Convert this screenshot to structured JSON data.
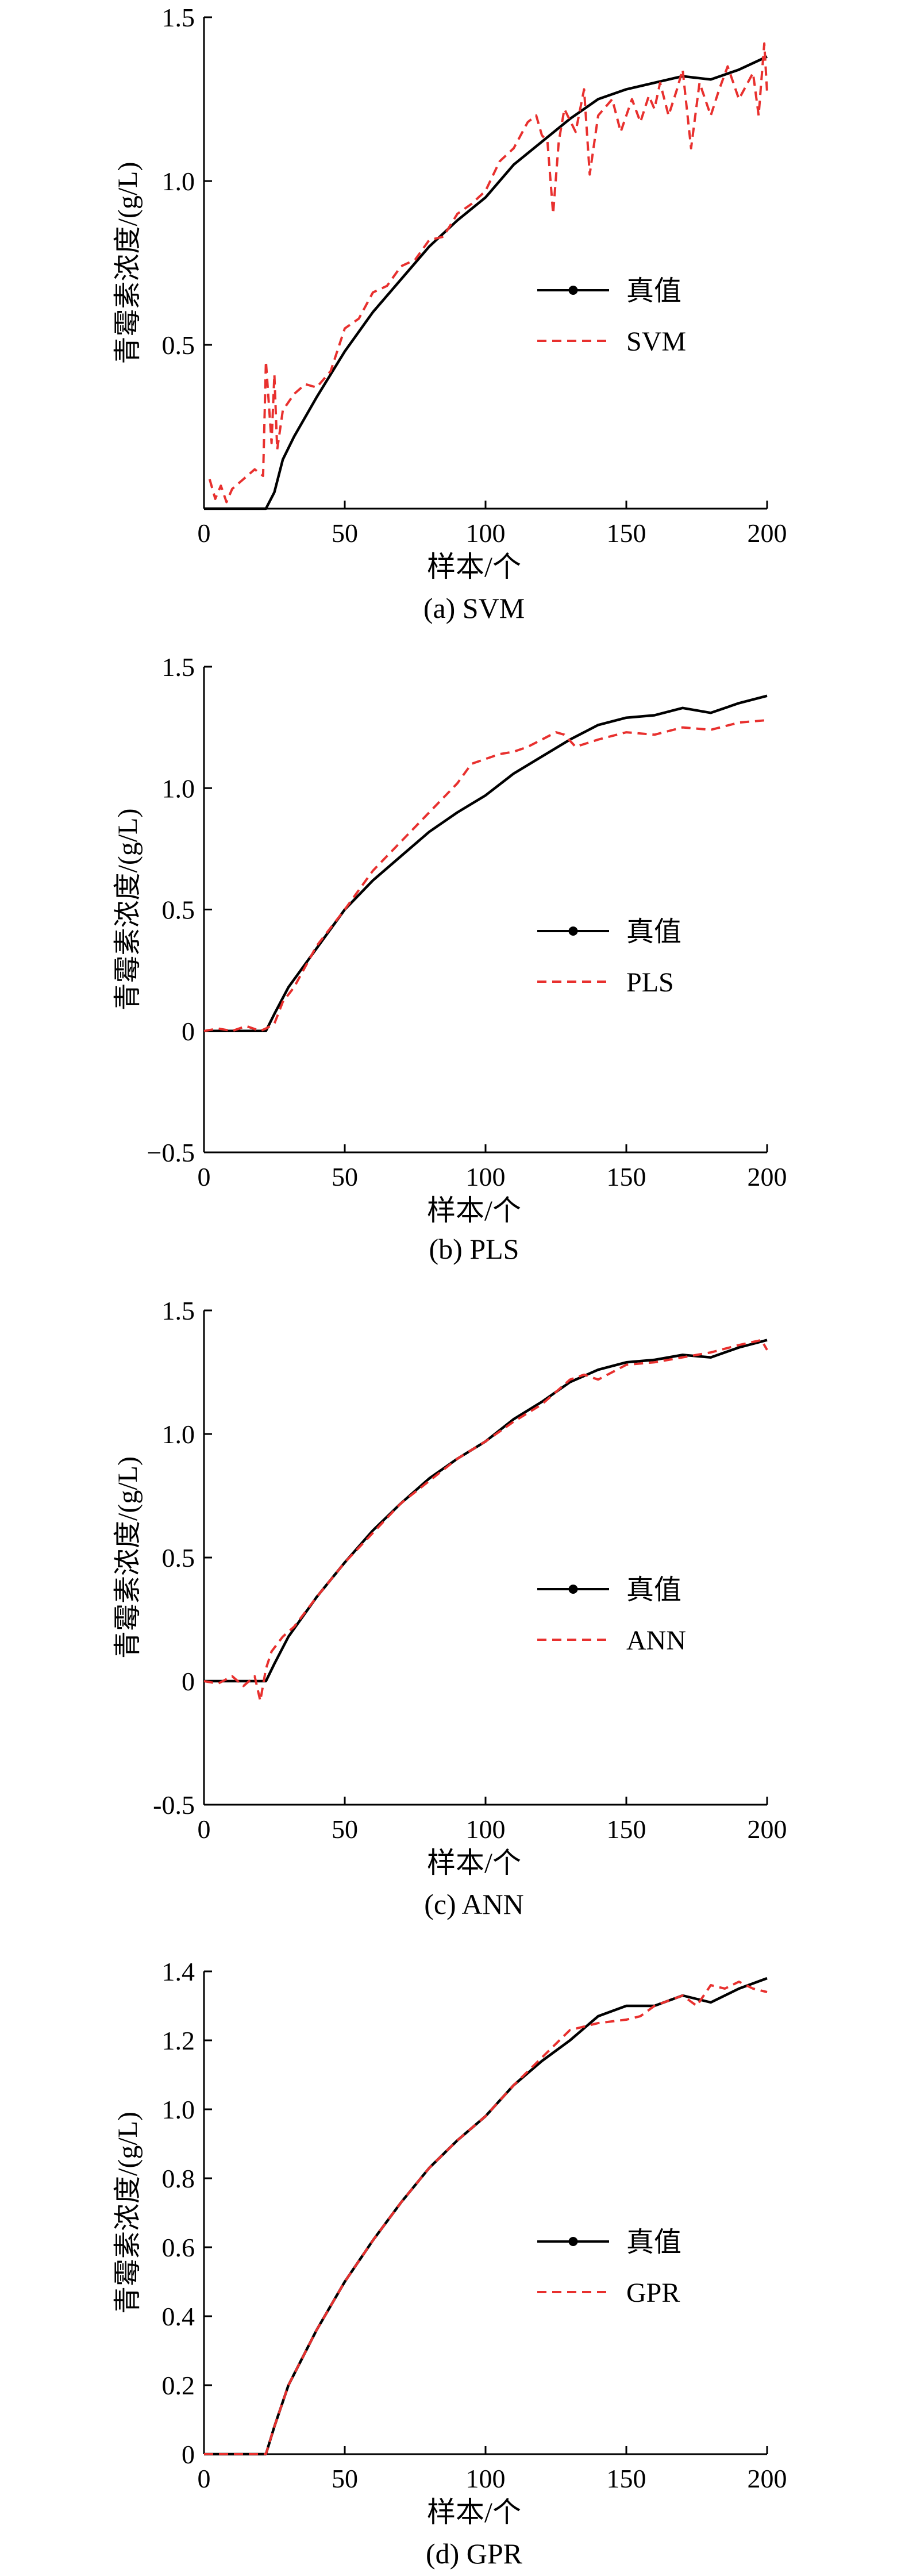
{
  "chart_data": [
    {
      "type": "line",
      "caption": "(a) SVM",
      "xlabel": "样本/个",
      "ylabel": "青霉素浓度/(g/L)",
      "xlim": [
        0,
        200
      ],
      "ylim": [
        0,
        1.5
      ],
      "xticks": [
        "0",
        "50",
        "100",
        "150",
        "200"
      ],
      "yticks": [
        {
          "v": 0.5,
          "t": "0.5"
        },
        {
          "v": 1.0,
          "t": "1.0"
        },
        {
          "v": 1.5,
          "t": "1.5"
        }
      ],
      "grid": false,
      "legend_position": "center-right",
      "series": [
        {
          "name": "真值",
          "color": "#000000",
          "style": "solid",
          "points": [
            [
              0,
              0
            ],
            [
              22,
              0
            ],
            [
              25,
              0.05
            ],
            [
              28,
              0.15
            ],
            [
              32,
              0.22
            ],
            [
              40,
              0.34
            ],
            [
              50,
              0.48
            ],
            [
              60,
              0.6
            ],
            [
              70,
              0.7
            ],
            [
              80,
              0.8
            ],
            [
              90,
              0.88
            ],
            [
              100,
              0.95
            ],
            [
              110,
              1.05
            ],
            [
              120,
              1.12
            ],
            [
              130,
              1.19
            ],
            [
              140,
              1.25
            ],
            [
              150,
              1.28
            ],
            [
              160,
              1.3
            ],
            [
              170,
              1.32
            ],
            [
              180,
              1.31
            ],
            [
              190,
              1.34
            ],
            [
              200,
              1.38
            ]
          ]
        },
        {
          "name": "SVM",
          "color": "#e8302e",
          "style": "dashed",
          "points": [
            [
              2,
              0.09
            ],
            [
              4,
              0.03
            ],
            [
              6,
              0.07
            ],
            [
              8,
              0.02
            ],
            [
              10,
              0.06
            ],
            [
              14,
              0.09
            ],
            [
              18,
              0.12
            ],
            [
              21,
              0.1
            ],
            [
              22,
              0.45
            ],
            [
              24,
              0.2
            ],
            [
              25,
              0.41
            ],
            [
              26,
              0.18
            ],
            [
              28,
              0.3
            ],
            [
              32,
              0.35
            ],
            [
              36,
              0.38
            ],
            [
              40,
              0.37
            ],
            [
              45,
              0.42
            ],
            [
              50,
              0.55
            ],
            [
              55,
              0.58
            ],
            [
              60,
              0.66
            ],
            [
              65,
              0.68
            ],
            [
              70,
              0.74
            ],
            [
              75,
              0.76
            ],
            [
              80,
              0.82
            ],
            [
              85,
              0.83
            ],
            [
              90,
              0.9
            ],
            [
              95,
              0.93
            ],
            [
              100,
              0.97
            ],
            [
              105,
              1.06
            ],
            [
              110,
              1.1
            ],
            [
              115,
              1.18
            ],
            [
              118,
              1.2
            ],
            [
              120,
              1.14
            ],
            [
              122,
              1.12
            ],
            [
              124,
              0.9
            ],
            [
              126,
              1.12
            ],
            [
              128,
              1.22
            ],
            [
              132,
              1.15
            ],
            [
              135,
              1.28
            ],
            [
              137,
              1.02
            ],
            [
              140,
              1.2
            ],
            [
              145,
              1.25
            ],
            [
              148,
              1.15
            ],
            [
              152,
              1.25
            ],
            [
              155,
              1.18
            ],
            [
              158,
              1.26
            ],
            [
              160,
              1.22
            ],
            [
              162,
              1.3
            ],
            [
              165,
              1.2
            ],
            [
              168,
              1.28
            ],
            [
              170,
              1.34
            ],
            [
              173,
              1.1
            ],
            [
              176,
              1.3
            ],
            [
              180,
              1.2
            ],
            [
              183,
              1.28
            ],
            [
              186,
              1.35
            ],
            [
              190,
              1.25
            ],
            [
              195,
              1.33
            ],
            [
              197,
              1.2
            ],
            [
              199,
              1.42
            ],
            [
              200,
              1.27
            ]
          ]
        }
      ]
    },
    {
      "type": "line",
      "caption": "(b) PLS",
      "xlabel": "样本/个",
      "ylabel": "青霉素浓度/(g/L)",
      "xlim": [
        0,
        200
      ],
      "ylim": [
        -0.5,
        1.5
      ],
      "xticks": [
        "0",
        "50",
        "100",
        "150",
        "200"
      ],
      "yticks": [
        {
          "v": -0.5,
          "t": "−0.5"
        },
        {
          "v": 0,
          "t": "0"
        },
        {
          "v": 0.5,
          "t": "0.5"
        },
        {
          "v": 1.0,
          "t": "1.0"
        },
        {
          "v": 1.5,
          "t": "1.5"
        }
      ],
      "grid": false,
      "legend_position": "center-right",
      "series": [
        {
          "name": "真值",
          "color": "#000000",
          "style": "solid",
          "points": [
            [
              0,
              0
            ],
            [
              22,
              0
            ],
            [
              25,
              0.07
            ],
            [
              30,
              0.18
            ],
            [
              40,
              0.34
            ],
            [
              50,
              0.5
            ],
            [
              60,
              0.62
            ],
            [
              70,
              0.72
            ],
            [
              80,
              0.82
            ],
            [
              90,
              0.9
            ],
            [
              100,
              0.97
            ],
            [
              110,
              1.06
            ],
            [
              120,
              1.13
            ],
            [
              130,
              1.2
            ],
            [
              140,
              1.26
            ],
            [
              150,
              1.29
            ],
            [
              160,
              1.3
            ],
            [
              170,
              1.33
            ],
            [
              180,
              1.31
            ],
            [
              190,
              1.35
            ],
            [
              200,
              1.38
            ]
          ]
        },
        {
          "name": "PLS",
          "color": "#e8302e",
          "style": "dashed",
          "points": [
            [
              0,
              0
            ],
            [
              5,
              0.01
            ],
            [
              10,
              0
            ],
            [
              15,
              0.02
            ],
            [
              20,
              0
            ],
            [
              22,
              0.01
            ],
            [
              25,
              0.03
            ],
            [
              28,
              0.12
            ],
            [
              32,
              0.18
            ],
            [
              40,
              0.35
            ],
            [
              50,
              0.5
            ],
            [
              60,
              0.66
            ],
            [
              70,
              0.78
            ],
            [
              80,
              0.9
            ],
            [
              90,
              1.02
            ],
            [
              95,
              1.1
            ],
            [
              100,
              1.12
            ],
            [
              105,
              1.14
            ],
            [
              110,
              1.15
            ],
            [
              115,
              1.17
            ],
            [
              120,
              1.2
            ],
            [
              125,
              1.23
            ],
            [
              128,
              1.22
            ],
            [
              132,
              1.17
            ],
            [
              140,
              1.2
            ],
            [
              150,
              1.23
            ],
            [
              160,
              1.22
            ],
            [
              170,
              1.25
            ],
            [
              180,
              1.24
            ],
            [
              190,
              1.27
            ],
            [
              200,
              1.28
            ]
          ]
        }
      ]
    },
    {
      "type": "line",
      "caption": "(c) ANN",
      "xlabel": "样本/个",
      "ylabel": "青霉素浓度/(g/L)",
      "xlim": [
        0,
        200
      ],
      "ylim": [
        -0.5,
        1.5
      ],
      "xticks": [
        "0",
        "50",
        "100",
        "150",
        "200"
      ],
      "yticks": [
        {
          "v": -0.5,
          "t": "-0.5"
        },
        {
          "v": 0,
          "t": "0"
        },
        {
          "v": 0.5,
          "t": "0.5"
        },
        {
          "v": 1.0,
          "t": "1.0"
        },
        {
          "v": 1.5,
          "t": "1.5"
        }
      ],
      "grid": false,
      "legend_position": "center-right",
      "series": [
        {
          "name": "真值",
          "color": "#000000",
          "style": "solid",
          "points": [
            [
              0,
              0
            ],
            [
              22,
              0
            ],
            [
              25,
              0.07
            ],
            [
              30,
              0.18
            ],
            [
              40,
              0.34
            ],
            [
              50,
              0.48
            ],
            [
              60,
              0.61
            ],
            [
              70,
              0.72
            ],
            [
              80,
              0.82
            ],
            [
              90,
              0.9
            ],
            [
              100,
              0.97
            ],
            [
              110,
              1.06
            ],
            [
              120,
              1.13
            ],
            [
              130,
              1.21
            ],
            [
              140,
              1.26
            ],
            [
              150,
              1.29
            ],
            [
              160,
              1.3
            ],
            [
              170,
              1.32
            ],
            [
              180,
              1.31
            ],
            [
              190,
              1.35
            ],
            [
              200,
              1.38
            ]
          ]
        },
        {
          "name": "ANN",
          "color": "#e8302e",
          "style": "dashed",
          "points": [
            [
              0,
              0
            ],
            [
              5,
              -0.01
            ],
            [
              10,
              0.02
            ],
            [
              14,
              -0.02
            ],
            [
              18,
              0.02
            ],
            [
              20,
              -0.08
            ],
            [
              22,
              0.05
            ],
            [
              24,
              0.12
            ],
            [
              28,
              0.18
            ],
            [
              32,
              0.22
            ],
            [
              40,
              0.34
            ],
            [
              50,
              0.48
            ],
            [
              60,
              0.6
            ],
            [
              70,
              0.72
            ],
            [
              80,
              0.81
            ],
            [
              90,
              0.9
            ],
            [
              100,
              0.97
            ],
            [
              110,
              1.05
            ],
            [
              120,
              1.12
            ],
            [
              130,
              1.22
            ],
            [
              135,
              1.24
            ],
            [
              140,
              1.22
            ],
            [
              150,
              1.28
            ],
            [
              160,
              1.29
            ],
            [
              170,
              1.31
            ],
            [
              180,
              1.33
            ],
            [
              190,
              1.36
            ],
            [
              198,
              1.38
            ],
            [
              200,
              1.34
            ]
          ]
        }
      ]
    },
    {
      "type": "line",
      "caption": "(d) GPR",
      "xlabel": "样本/个",
      "ylabel": "青霉素浓度/(g/L)",
      "xlim": [
        0,
        200
      ],
      "ylim": [
        0,
        1.4
      ],
      "xticks": [
        "0",
        "50",
        "100",
        "150",
        "200"
      ],
      "yticks": [
        {
          "v": 0,
          "t": "0"
        },
        {
          "v": 0.2,
          "t": "0.2"
        },
        {
          "v": 0.4,
          "t": "0.4"
        },
        {
          "v": 0.6,
          "t": "0.6"
        },
        {
          "v": 0.8,
          "t": "0.8"
        },
        {
          "v": 1.0,
          "t": "1.0"
        },
        {
          "v": 1.2,
          "t": "1.2"
        },
        {
          "v": 1.4,
          "t": "1.4"
        }
      ],
      "grid": false,
      "legend_position": "center-right",
      "series": [
        {
          "name": "真值",
          "color": "#000000",
          "style": "solid",
          "points": [
            [
              0,
              0
            ],
            [
              22,
              0
            ],
            [
              25,
              0.08
            ],
            [
              30,
              0.2
            ],
            [
              40,
              0.36
            ],
            [
              50,
              0.5
            ],
            [
              60,
              0.62
            ],
            [
              70,
              0.73
            ],
            [
              80,
              0.83
            ],
            [
              90,
              0.91
            ],
            [
              100,
              0.98
            ],
            [
              110,
              1.07
            ],
            [
              120,
              1.14
            ],
            [
              130,
              1.2
            ],
            [
              140,
              1.27
            ],
            [
              150,
              1.3
            ],
            [
              160,
              1.3
            ],
            [
              170,
              1.33
            ],
            [
              180,
              1.31
            ],
            [
              190,
              1.35
            ],
            [
              200,
              1.38
            ]
          ]
        },
        {
          "name": "GPR",
          "color": "#e8302e",
          "style": "dashed",
          "points": [
            [
              0,
              0
            ],
            [
              22,
              0
            ],
            [
              25,
              0.08
            ],
            [
              30,
              0.2
            ],
            [
              40,
              0.36
            ],
            [
              50,
              0.5
            ],
            [
              60,
              0.62
            ],
            [
              70,
              0.73
            ],
            [
              80,
              0.83
            ],
            [
              90,
              0.91
            ],
            [
              100,
              0.98
            ],
            [
              110,
              1.07
            ],
            [
              120,
              1.15
            ],
            [
              130,
              1.23
            ],
            [
              140,
              1.25
            ],
            [
              150,
              1.26
            ],
            [
              155,
              1.27
            ],
            [
              160,
              1.3
            ],
            [
              170,
              1.33
            ],
            [
              175,
              1.3
            ],
            [
              180,
              1.36
            ],
            [
              185,
              1.35
            ],
            [
              190,
              1.37
            ],
            [
              195,
              1.35
            ],
            [
              200,
              1.34
            ]
          ]
        }
      ]
    }
  ]
}
